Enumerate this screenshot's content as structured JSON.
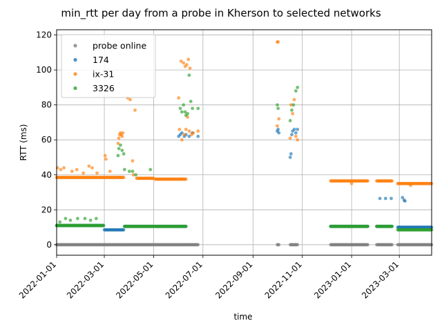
{
  "chart_data": {
    "type": "scatter",
    "title": "min_rtt per day from a probe in Kherson to selected networks",
    "xlabel": "time",
    "ylabel": "RTT (ms)",
    "xlim": [
      "2022-01-01",
      "2023-04-10"
    ],
    "ylim": [
      -6,
      123
    ],
    "x_ticks": [
      "2022-01-01",
      "2022-03-01",
      "2022-05-01",
      "2022-07-01",
      "2022-09-01",
      "2022-11-01",
      "2023-01-01",
      "2023-03-01"
    ],
    "y_ticks": [
      0,
      20,
      40,
      60,
      80,
      100,
      120
    ],
    "grid": true,
    "legend_position": "upper-left",
    "series": [
      {
        "name": "probe online",
        "color": "#7f7f7f",
        "segments": [
          {
            "start": "2022-01-01",
            "end": "2022-05-02",
            "y": 0
          },
          {
            "start": "2022-05-03",
            "end": "2022-06-25",
            "y": 0
          },
          {
            "start": "2022-10-01",
            "end": "2022-10-03",
            "y": 0
          },
          {
            "start": "2022-10-17",
            "end": "2022-10-26",
            "y": 0
          },
          {
            "start": "2022-12-06",
            "end": "2023-01-21",
            "y": 0
          },
          {
            "start": "2023-02-01",
            "end": "2023-02-20",
            "y": 0
          },
          {
            "start": "2023-02-27",
            "end": "2023-04-10",
            "y": 0
          }
        ],
        "points": []
      },
      {
        "name": "174",
        "color": "#1f77b4",
        "segments": [
          {
            "start": "2022-01-01",
            "end": "2022-02-28",
            "y": 11
          },
          {
            "start": "2022-03-01",
            "end": "2022-03-25",
            "y": 8.5
          },
          {
            "start": "2022-03-26",
            "end": "2022-05-01",
            "y": 10.5
          },
          {
            "start": "2022-05-03",
            "end": "2022-06-10",
            "y": 10.5
          },
          {
            "start": "2022-12-06",
            "end": "2023-01-21",
            "y": 10.5
          },
          {
            "start": "2023-02-01",
            "end": "2023-02-20",
            "y": 10.5
          },
          {
            "start": "2023-02-27",
            "end": "2023-04-10",
            "y": 10
          }
        ],
        "points": [
          {
            "x": "2022-06-01",
            "y": 62
          },
          {
            "x": "2022-06-03",
            "y": 63
          },
          {
            "x": "2022-06-05",
            "y": 64
          },
          {
            "x": "2022-06-08",
            "y": 62
          },
          {
            "x": "2022-06-10",
            "y": 63
          },
          {
            "x": "2022-06-14",
            "y": 62
          },
          {
            "x": "2022-06-18",
            "y": 64
          },
          {
            "x": "2022-06-25",
            "y": 62
          },
          {
            "x": "2022-10-01",
            "y": 65
          },
          {
            "x": "2022-10-02",
            "y": 66
          },
          {
            "x": "2022-10-03",
            "y": 64
          },
          {
            "x": "2022-10-17",
            "y": 50
          },
          {
            "x": "2022-10-18",
            "y": 52
          },
          {
            "x": "2022-10-19",
            "y": 63
          },
          {
            "x": "2022-10-20",
            "y": 65
          },
          {
            "x": "2022-10-22",
            "y": 66
          },
          {
            "x": "2022-10-24",
            "y": 64
          },
          {
            "x": "2022-10-26",
            "y": 66
          },
          {
            "x": "2023-02-05",
            "y": 26.5
          },
          {
            "x": "2023-02-12",
            "y": 26.5
          },
          {
            "x": "2023-02-19",
            "y": 26.5
          },
          {
            "x": "2023-03-05",
            "y": 27
          },
          {
            "x": "2023-03-07",
            "y": 25.5
          },
          {
            "x": "2023-03-08",
            "y": 25
          }
        ]
      },
      {
        "name": "ix-31",
        "color": "#ff7f0e",
        "segments": [
          {
            "start": "2022-01-01",
            "end": "2022-03-25",
            "y": 38.5
          },
          {
            "start": "2022-04-10",
            "end": "2022-05-01",
            "y": 38
          },
          {
            "start": "2022-05-03",
            "end": "2022-06-10",
            "y": 37.5
          },
          {
            "start": "2022-12-06",
            "end": "2023-01-21",
            "y": 36.5
          },
          {
            "start": "2023-02-01",
            "end": "2023-02-20",
            "y": 36.5
          },
          {
            "start": "2023-02-27",
            "end": "2023-04-10",
            "y": 35
          }
        ],
        "points": [
          {
            "x": "2022-01-02",
            "y": 44
          },
          {
            "x": "2022-01-06",
            "y": 43
          },
          {
            "x": "2022-01-10",
            "y": 44
          },
          {
            "x": "2022-01-20",
            "y": 42
          },
          {
            "x": "2022-01-26",
            "y": 43
          },
          {
            "x": "2022-02-03",
            "y": 41
          },
          {
            "x": "2022-02-10",
            "y": 45
          },
          {
            "x": "2022-02-14",
            "y": 44
          },
          {
            "x": "2022-02-20",
            "y": 41
          },
          {
            "x": "2022-03-02",
            "y": 51
          },
          {
            "x": "2022-03-03",
            "y": 49
          },
          {
            "x": "2022-03-08",
            "y": 42
          },
          {
            "x": "2022-03-18",
            "y": 58
          },
          {
            "x": "2022-03-19",
            "y": 61
          },
          {
            "x": "2022-03-20",
            "y": 63
          },
          {
            "x": "2022-03-21",
            "y": 64
          },
          {
            "x": "2022-03-22",
            "y": 63
          },
          {
            "x": "2022-03-23",
            "y": 62
          },
          {
            "x": "2022-03-24",
            "y": 64
          },
          {
            "x": "2022-03-30",
            "y": 84
          },
          {
            "x": "2022-04-02",
            "y": 83
          },
          {
            "x": "2022-04-05",
            "y": 48
          },
          {
            "x": "2022-04-08",
            "y": 77
          },
          {
            "x": "2022-04-06",
            "y": 40
          },
          {
            "x": "2022-06-01",
            "y": 84
          },
          {
            "x": "2022-06-04",
            "y": 105
          },
          {
            "x": "2022-06-07",
            "y": 104
          },
          {
            "x": "2022-06-09",
            "y": 102
          },
          {
            "x": "2022-06-11",
            "y": 103
          },
          {
            "x": "2022-06-13",
            "y": 106
          },
          {
            "x": "2022-06-15",
            "y": 101
          },
          {
            "x": "2022-06-02",
            "y": 66
          },
          {
            "x": "2022-06-05",
            "y": 60
          },
          {
            "x": "2022-06-08",
            "y": 63
          },
          {
            "x": "2022-06-10",
            "y": 66
          },
          {
            "x": "2022-06-12",
            "y": 73
          },
          {
            "x": "2022-06-14",
            "y": 65
          },
          {
            "x": "2022-06-17",
            "y": 63
          },
          {
            "x": "2022-06-19",
            "y": 64
          },
          {
            "x": "2022-06-25",
            "y": 65
          },
          {
            "x": "2022-10-01",
            "y": 116
          },
          {
            "x": "2022-10-02",
            "y": 116
          },
          {
            "x": "2022-10-01",
            "y": 68
          },
          {
            "x": "2022-10-03",
            "y": 72
          },
          {
            "x": "2022-10-17",
            "y": 61
          },
          {
            "x": "2022-10-18",
            "y": 80
          },
          {
            "x": "2022-10-20",
            "y": 75
          },
          {
            "x": "2022-10-22",
            "y": 83
          },
          {
            "x": "2022-10-24",
            "y": 62
          },
          {
            "x": "2022-10-26",
            "y": 60
          },
          {
            "x": "2023-01-01",
            "y": 35
          },
          {
            "x": "2023-03-15",
            "y": 34
          }
        ]
      },
      {
        "name": "3326",
        "color": "#2ca02c",
        "segments": [
          {
            "start": "2022-01-01",
            "end": "2022-02-28",
            "y": 11
          },
          {
            "start": "2022-03-26",
            "end": "2022-05-01",
            "y": 10.5
          },
          {
            "start": "2022-05-03",
            "end": "2022-06-10",
            "y": 10.5
          },
          {
            "start": "2022-12-06",
            "end": "2023-01-21",
            "y": 10.5
          },
          {
            "start": "2023-02-01",
            "end": "2023-02-20",
            "y": 10.5
          },
          {
            "start": "2023-02-27",
            "end": "2023-04-10",
            "y": 8.5
          }
        ],
        "points": [
          {
            "x": "2022-01-05",
            "y": 13
          },
          {
            "x": "2022-01-12",
            "y": 15
          },
          {
            "x": "2022-01-18",
            "y": 14
          },
          {
            "x": "2022-01-27",
            "y": 15
          },
          {
            "x": "2022-02-05",
            "y": 15
          },
          {
            "x": "2022-02-12",
            "y": 14
          },
          {
            "x": "2022-02-19",
            "y": 15
          },
          {
            "x": "2022-03-18",
            "y": 51
          },
          {
            "x": "2022-03-19",
            "y": 55
          },
          {
            "x": "2022-03-21",
            "y": 57
          },
          {
            "x": "2022-03-23",
            "y": 54
          },
          {
            "x": "2022-03-25",
            "y": 52
          },
          {
            "x": "2022-03-26",
            "y": 43
          },
          {
            "x": "2022-04-01",
            "y": 42
          },
          {
            "x": "2022-04-05",
            "y": 42
          },
          {
            "x": "2022-04-09",
            "y": 40
          },
          {
            "x": "2022-04-27",
            "y": 43
          },
          {
            "x": "2022-06-03",
            "y": 78
          },
          {
            "x": "2022-06-05",
            "y": 76
          },
          {
            "x": "2022-06-07",
            "y": 80
          },
          {
            "x": "2022-06-09",
            "y": 76
          },
          {
            "x": "2022-06-10",
            "y": 74
          },
          {
            "x": "2022-06-12",
            "y": 75
          },
          {
            "x": "2022-06-14",
            "y": 97
          },
          {
            "x": "2022-06-16",
            "y": 82
          },
          {
            "x": "2022-06-18",
            "y": 78
          },
          {
            "x": "2022-06-25",
            "y": 78
          },
          {
            "x": "2022-10-01",
            "y": 80
          },
          {
            "x": "2022-10-02",
            "y": 78
          },
          {
            "x": "2022-10-17",
            "y": 71
          },
          {
            "x": "2022-10-19",
            "y": 77
          },
          {
            "x": "2022-10-21",
            "y": 80
          },
          {
            "x": "2022-10-24",
            "y": 88
          },
          {
            "x": "2022-10-26",
            "y": 90
          }
        ]
      }
    ]
  }
}
